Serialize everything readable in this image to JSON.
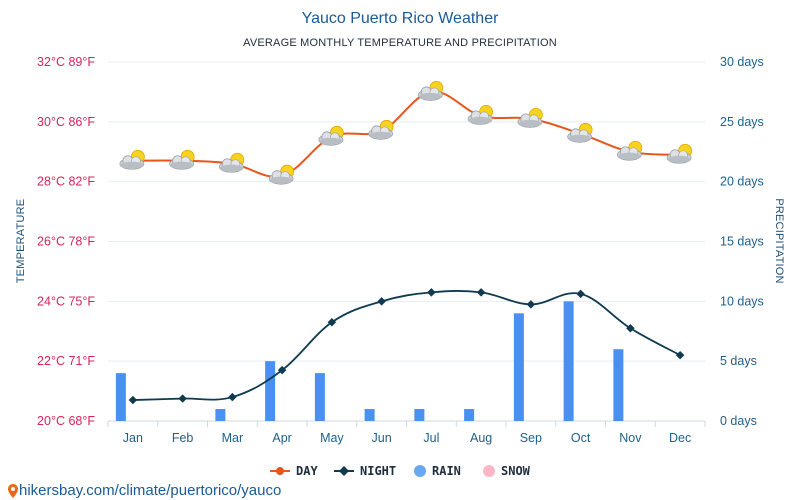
{
  "chart_data": {
    "type": "line",
    "title": "Yauco Puerto Rico Weather",
    "subtitle": "AVERAGE MONTHLY TEMPERATURE AND PRECIPITATION",
    "categories": [
      "Jan",
      "Feb",
      "Mar",
      "Apr",
      "May",
      "Jun",
      "Jul",
      "Aug",
      "Sep",
      "Oct",
      "Nov",
      "Dec"
    ],
    "y_left": {
      "label": "TEMPERATURE",
      "range": [
        20,
        32
      ],
      "ticks": [
        "20°C 68°F",
        "22°C 71°F",
        "24°C 75°F",
        "26°C 78°F",
        "28°C 82°F",
        "30°C 86°F",
        "32°C 89°F"
      ],
      "tick_values": [
        20,
        22,
        24,
        26,
        28,
        30,
        32
      ]
    },
    "y_right": {
      "label": "PRECIPITATION",
      "range": [
        0,
        30
      ],
      "ticks": [
        "0 days",
        "5 days",
        "10 days",
        "15 days",
        "20 days",
        "25 days",
        "30 days"
      ],
      "tick_values": [
        0,
        5,
        10,
        15,
        20,
        25,
        30
      ]
    },
    "series": [
      {
        "name": "DAY",
        "axis": "left",
        "color": "#e8561b",
        "values": [
          28.7,
          28.7,
          28.6,
          28.2,
          29.5,
          29.7,
          31.0,
          30.2,
          30.1,
          29.6,
          29.0,
          28.9
        ]
      },
      {
        "name": "NIGHT",
        "axis": "left",
        "color": "#0f3a50",
        "values": [
          20.7,
          20.75,
          20.8,
          21.7,
          23.3,
          24.0,
          24.3,
          24.3,
          23.9,
          24.25,
          23.1,
          22.2
        ]
      },
      {
        "name": "RAIN",
        "axis": "right",
        "type": "bar",
        "color": "#4a90f0",
        "values": [
          4,
          0,
          1,
          5,
          4,
          1,
          1,
          1,
          9,
          10,
          6,
          0
        ]
      },
      {
        "name": "SNOW",
        "axis": "right",
        "type": "bar",
        "color": "#ffb6c8",
        "values": [
          0,
          0,
          0,
          0,
          0,
          0,
          0,
          0,
          0,
          0,
          0,
          0
        ]
      }
    ],
    "legend": [
      "DAY",
      "NIGHT",
      "RAIN",
      "SNOW"
    ],
    "legend_position": "bottom-center",
    "weather_icons": [
      "cloud-sun-icon",
      "cloud-sun-icon",
      "cloud-sun-icon",
      "cloud-sun-icon",
      "cloud-sun-icon",
      "cloud-sun-icon",
      "cloud-sun-icon",
      "cloud-sun-icon",
      "cloud-sun-icon",
      "cloud-sun-icon",
      "cloud-sun-icon",
      "cloud-sun-icon"
    ]
  },
  "footer": {
    "text": "hikersbay.com/climate/puertorico/yauco",
    "icon": "location-pin-icon"
  }
}
